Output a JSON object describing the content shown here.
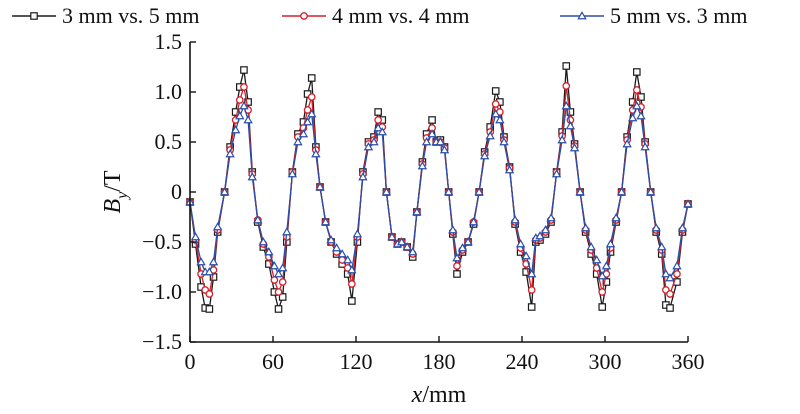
{
  "chart_data": {
    "type": "line",
    "xlabel_var": "x",
    "xlabel_unit": "/mm",
    "ylabel_var": "B",
    "ylabel_sub": "y",
    "ylabel_unit": "/T",
    "xlim": [
      0,
      360
    ],
    "ylim": [
      -1.5,
      1.5
    ],
    "xticks": [
      0,
      60,
      120,
      180,
      240,
      300,
      360
    ],
    "yticks": [
      -1.5,
      -1.0,
      -0.5,
      0,
      0.5,
      1.0,
      1.5
    ],
    "ytick_labels": [
      "−1.5",
      "−1.0",
      "−0.5",
      "0",
      "0.5",
      "1.0",
      "1.5"
    ],
    "grid": false,
    "legend_position": "top",
    "x": [
      0,
      4,
      8,
      11,
      14,
      17,
      20,
      25,
      29,
      33,
      36,
      39,
      42,
      45,
      49,
      53,
      57,
      61,
      64,
      67,
      70,
      74,
      78,
      82,
      85,
      88,
      91,
      94,
      98,
      102,
      106,
      110,
      114,
      117,
      121,
      125,
      129,
      133,
      136,
      139,
      142,
      146,
      150,
      153,
      157,
      161,
      164,
      168,
      171,
      175,
      178,
      181,
      184,
      187,
      190,
      193,
      197,
      201,
      205,
      209,
      213,
      217,
      221,
      224,
      227,
      231,
      235,
      239,
      243,
      247,
      250,
      253,
      257,
      261,
      265,
      269,
      272,
      275,
      278,
      282,
      286,
      290,
      294,
      298,
      301,
      304,
      308,
      312,
      316,
      320,
      323,
      326,
      329,
      333,
      337,
      341,
      344,
      347,
      352,
      356,
      360
    ],
    "series": [
      {
        "name": "3 mm vs. 5 mm",
        "color": "#1a1a1a",
        "marker": "square",
        "values": [
          -0.1,
          -0.52,
          -0.95,
          -1.16,
          -1.17,
          -0.85,
          -0.4,
          0.0,
          0.45,
          0.8,
          1.05,
          1.22,
          0.9,
          0.2,
          -0.3,
          -0.55,
          -0.72,
          -1.0,
          -1.17,
          -1.05,
          -0.5,
          0.2,
          0.58,
          0.7,
          0.98,
          1.14,
          0.45,
          0.05,
          -0.3,
          -0.5,
          -0.62,
          -0.72,
          -0.82,
          -1.09,
          -0.5,
          0.2,
          0.5,
          0.55,
          0.8,
          0.72,
          0.0,
          -0.45,
          -0.52,
          -0.5,
          -0.55,
          -0.65,
          -0.2,
          0.3,
          0.58,
          0.72,
          0.5,
          0.52,
          0.45,
          0.0,
          -0.42,
          -0.82,
          -0.6,
          -0.5,
          -0.32,
          0.0,
          0.4,
          0.65,
          1.01,
          0.9,
          0.55,
          0.25,
          -0.32,
          -0.6,
          -0.8,
          -1.15,
          -0.5,
          -0.48,
          -0.42,
          -0.3,
          0.2,
          0.6,
          1.26,
          0.8,
          0.48,
          0.0,
          -0.4,
          -0.62,
          -0.82,
          -1.15,
          -0.9,
          -0.6,
          -0.3,
          0.0,
          0.55,
          0.9,
          1.2,
          0.95,
          0.5,
          0.0,
          -0.4,
          -0.62,
          -1.13,
          -1.16,
          -0.9,
          -0.4,
          -0.12
        ]
      },
      {
        "name": "4 mm vs. 4  mm",
        "color": "#d6202a",
        "marker": "circle",
        "values": [
          -0.1,
          -0.48,
          -0.82,
          -0.98,
          -1.02,
          -0.78,
          -0.38,
          0.0,
          0.42,
          0.72,
          0.92,
          1.05,
          0.82,
          0.18,
          -0.28,
          -0.52,
          -0.65,
          -0.88,
          -1.0,
          -0.9,
          -0.45,
          0.2,
          0.55,
          0.64,
          0.82,
          0.95,
          0.42,
          0.05,
          -0.3,
          -0.5,
          -0.6,
          -0.68,
          -0.76,
          -0.92,
          -0.45,
          0.18,
          0.48,
          0.52,
          0.72,
          0.65,
          0.0,
          -0.45,
          -0.52,
          -0.5,
          -0.55,
          -0.62,
          -0.2,
          0.28,
          0.54,
          0.64,
          0.5,
          0.5,
          0.44,
          0.0,
          -0.4,
          -0.74,
          -0.58,
          -0.5,
          -0.3,
          0.0,
          0.38,
          0.6,
          0.88,
          0.8,
          0.52,
          0.24,
          -0.3,
          -0.56,
          -0.72,
          -0.98,
          -0.48,
          -0.46,
          -0.4,
          -0.28,
          0.2,
          0.56,
          1.06,
          0.72,
          0.46,
          0.0,
          -0.38,
          -0.58,
          -0.76,
          -1.0,
          -0.82,
          -0.56,
          -0.28,
          0.0,
          0.52,
          0.82,
          1.02,
          0.85,
          0.48,
          0.0,
          -0.38,
          -0.58,
          -0.98,
          -1.02,
          -0.82,
          -0.38,
          -0.12
        ]
      },
      {
        "name": "5 mm vs. 3 mm",
        "color": "#2a4ea8",
        "marker": "triangle",
        "values": [
          -0.1,
          -0.45,
          -0.7,
          -0.8,
          -0.8,
          -0.7,
          -0.35,
          0.0,
          0.38,
          0.62,
          0.76,
          0.86,
          0.72,
          0.15,
          -0.28,
          -0.5,
          -0.6,
          -0.74,
          -0.82,
          -0.76,
          -0.4,
          0.18,
          0.5,
          0.58,
          0.7,
          0.78,
          0.38,
          0.05,
          -0.3,
          -0.48,
          -0.56,
          -0.62,
          -0.68,
          -0.78,
          -0.42,
          0.15,
          0.45,
          0.5,
          0.64,
          0.6,
          0.0,
          -0.45,
          -0.52,
          -0.5,
          -0.55,
          -0.6,
          -0.2,
          0.26,
          0.5,
          0.58,
          0.5,
          0.5,
          0.42,
          0.0,
          -0.38,
          -0.66,
          -0.56,
          -0.5,
          -0.3,
          0.0,
          0.36,
          0.56,
          0.78,
          0.72,
          0.5,
          0.22,
          -0.28,
          -0.52,
          -0.64,
          -0.82,
          -0.46,
          -0.44,
          -0.38,
          -0.26,
          0.18,
          0.52,
          0.86,
          0.66,
          0.44,
          0.0,
          -0.36,
          -0.55,
          -0.68,
          -0.84,
          -0.74,
          -0.52,
          -0.26,
          0.0,
          0.48,
          0.74,
          0.86,
          0.76,
          0.45,
          0.0,
          -0.36,
          -0.55,
          -0.82,
          -0.86,
          -0.74,
          -0.36,
          -0.12
        ]
      }
    ]
  }
}
